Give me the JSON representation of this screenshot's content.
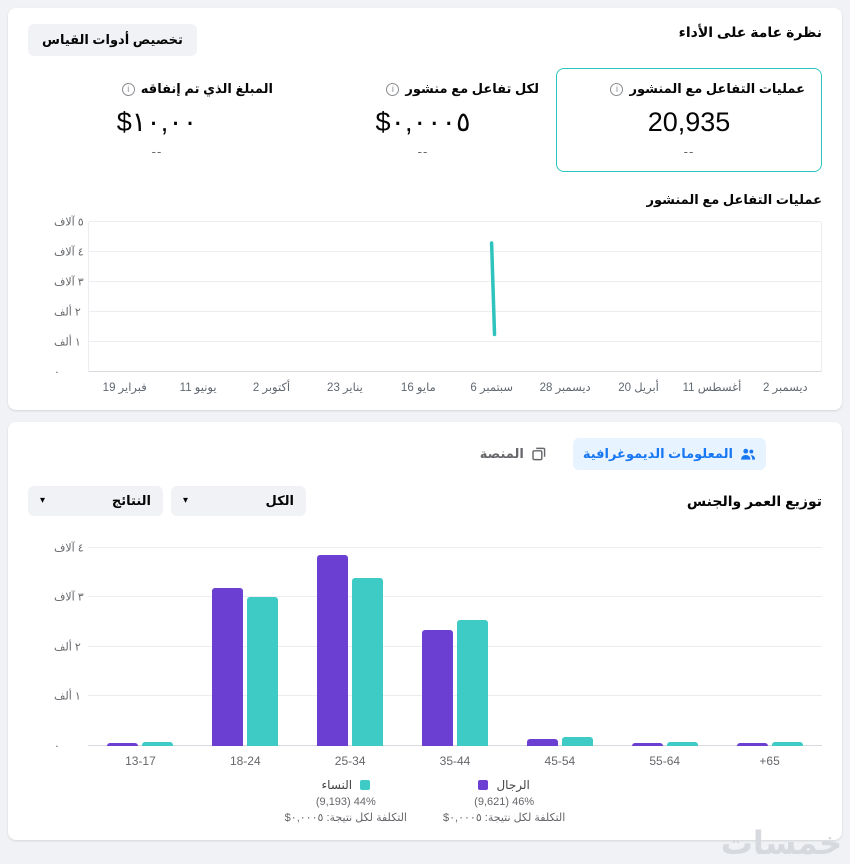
{
  "page": {
    "watermark": "خمسات",
    "colors": {
      "background": "#f0f2f5",
      "teal": "#2ec4bd",
      "purple": "#6b3fd1",
      "blue": "#1877f2",
      "blue_bg": "#e7f3ff"
    }
  },
  "overview_card": {
    "title": "نظرة عامة على الأداء",
    "customize_button": "تخصيص أدوات القياس",
    "metrics": [
      {
        "label": "عمليات التفاعل مع المنشور",
        "value": "20,935",
        "secondary": "--",
        "selected": true
      },
      {
        "label": "لكل تفاعل مع منشور",
        "value": "٠,٠٠٠٥$",
        "secondary": "--",
        "selected": false
      },
      {
        "label": "المبلغ الذي تم إنفاقه",
        "value": "١٠,٠٠$",
        "secondary": "--",
        "selected": false
      }
    ],
    "chart_title": "عمليات التفاعل مع المنشور"
  },
  "demographics_card": {
    "tabs": [
      {
        "label": "المعلومات الديموغرافية",
        "active": true,
        "icon": "people-icon"
      },
      {
        "label": "المنصة",
        "active": false,
        "icon": "overlapping-squares-icon"
      }
    ],
    "filters": [
      {
        "label": "الكل"
      },
      {
        "label": "النتائج"
      }
    ],
    "title": "توزيع العمر والجنس",
    "legend": {
      "women": {
        "label": "النساء",
        "share": "44% (9,193)",
        "cost_per_result": "التكلفة لكل نتيجة: ٠,٠٠٠٥$",
        "color": "#3ecbc5"
      },
      "men": {
        "label": "الرجال",
        "share": "46% (9,621)",
        "cost_per_result": "التكلفة لكل نتيجة: ٠,٠٠٠٥$",
        "color": "#6b3fd1"
      }
    }
  },
  "icons": {
    "info_glyph": "i",
    "chevron_down": "▾"
  },
  "chart_data": [
    {
      "type": "line",
      "title": "عمليات التفاعل مع المنشور",
      "color": "#2ec4bd",
      "y_max": 5000,
      "y_ticks": [
        {
          "value": 0,
          "label": "٠"
        },
        {
          "value": 1000,
          "label": "١ ألف"
        },
        {
          "value": 2000,
          "label": "٢ ألف"
        },
        {
          "value": 3000,
          "label": "٣ آلاف"
        },
        {
          "value": 4000,
          "label": "٤ آلاف"
        },
        {
          "value": 5000,
          "label": "٥ آلاف"
        }
      ],
      "x_labels_display_ltr": [
        "19 فبراير",
        "11 يونيو",
        "2 أكتوبر",
        "23 يناير",
        "16 مايو",
        "6 سبتمبر",
        "28 ديسمبر",
        "20 أبريل",
        "11 أغسطس",
        "2 ديسمبر"
      ],
      "note": "timeline reads right-to-left; single near-vertical spike at 6 سبتمبر",
      "spike": {
        "x_index": 5,
        "x_label": "6 سبتمبر",
        "peak": 4300,
        "trough": 1250
      }
    },
    {
      "type": "bar",
      "title": "توزيع العمر والجنس",
      "categories": [
        "13-17",
        "18-24",
        "25-34",
        "35-44",
        "45-54",
        "55-64",
        "+65"
      ],
      "series": [
        {
          "name": "الرجال",
          "color": "#6b3fd1",
          "values": [
            60,
            3200,
            3850,
            2350,
            140,
            70,
            60
          ]
        },
        {
          "name": "النساء",
          "color": "#3ecbc5",
          "values": [
            80,
            3000,
            3400,
            2550,
            190,
            90,
            80
          ]
        }
      ],
      "y_max": 4200,
      "y_ticks": [
        {
          "value": 0,
          "label": "٠"
        },
        {
          "value": 1000,
          "label": "١ ألف"
        },
        {
          "value": 2000,
          "label": "٢ ألف"
        },
        {
          "value": 3000,
          "label": "٣ آلاف"
        },
        {
          "value": 4000,
          "label": "٤ آلاف"
        }
      ]
    }
  ]
}
